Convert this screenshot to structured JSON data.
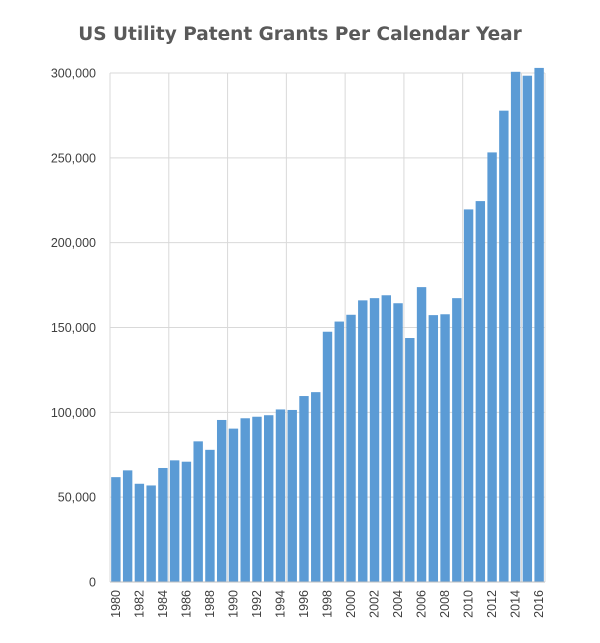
{
  "chart_data": {
    "type": "bar",
    "title": "US Utility Patent Grants Per Calendar Year",
    "xlabel": "",
    "ylabel": "",
    "ylim": [
      0,
      300000
    ],
    "y_ticks": [
      "0",
      "50,000",
      "100,000",
      "150,000",
      "200,000",
      "250,000",
      "300,000"
    ],
    "y_tick_values": [
      0,
      50000,
      100000,
      150000,
      200000,
      250000,
      300000
    ],
    "grid": true,
    "legend": "none",
    "bar_color": "#5b9bd5",
    "categories": [
      "1980",
      "1981",
      "1982",
      "1983",
      "1984",
      "1985",
      "1986",
      "1987",
      "1988",
      "1989",
      "1990",
      "1991",
      "1992",
      "1993",
      "1994",
      "1995",
      "1996",
      "1997",
      "1998",
      "1999",
      "2000",
      "2001",
      "2002",
      "2003",
      "2004",
      "2005",
      "2006",
      "2007",
      "2008",
      "2009",
      "2010",
      "2011",
      "2012",
      "2013",
      "2014",
      "2015",
      "2016"
    ],
    "x_tick_labels": [
      "1980",
      "",
      "1982",
      "",
      "1984",
      "",
      "1986",
      "",
      "1988",
      "",
      "1990",
      "",
      "1992",
      "",
      "1994",
      "",
      "1996",
      "",
      "1998",
      "",
      "2000",
      "",
      "2002",
      "",
      "2004",
      "",
      "2006",
      "",
      "2008",
      "",
      "2010",
      "",
      "2012",
      "",
      "2014",
      "",
      "2016"
    ],
    "values": [
      61800,
      65800,
      57900,
      56900,
      67200,
      71700,
      70900,
      82900,
      77900,
      95500,
      90400,
      96500,
      97400,
      98300,
      101700,
      101400,
      109600,
      111900,
      147500,
      153500,
      157500,
      166000,
      167300,
      169000,
      164300,
      143800,
      173800,
      157300,
      157800,
      167300,
      219600,
      224500,
      253200,
      277800,
      300700,
      298400,
      303000
    ]
  }
}
